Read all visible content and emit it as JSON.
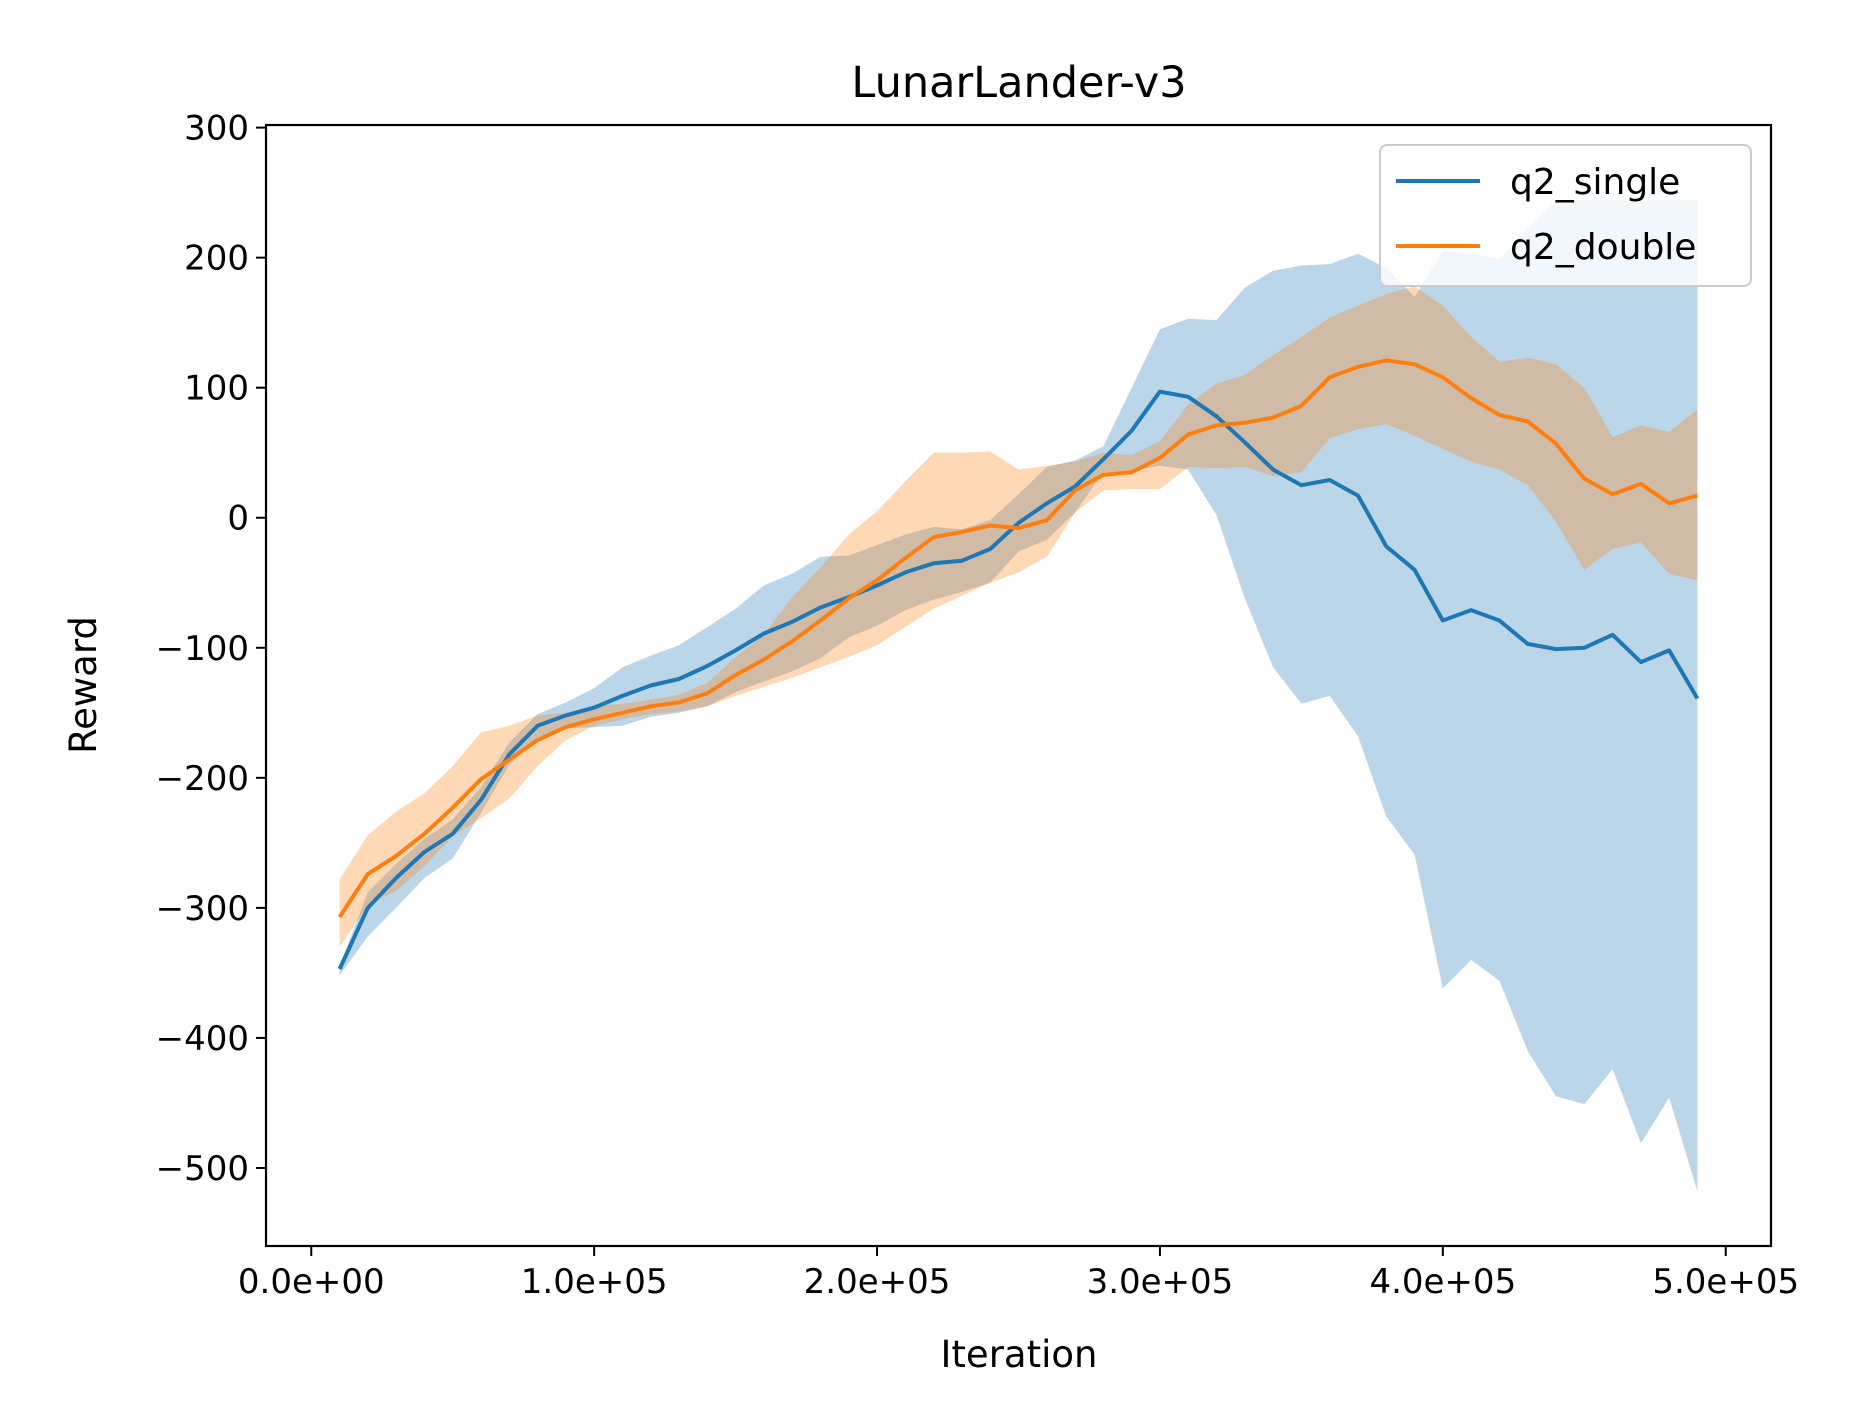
{
  "chart_data": {
    "type": "line",
    "title": "LunarLander-v3",
    "xlabel": "Iteration",
    "ylabel": "Reward",
    "xlim": [
      -16000,
      516000
    ],
    "ylim": [
      -560,
      302
    ],
    "x_ticks": [
      0,
      100000,
      200000,
      300000,
      400000,
      500000
    ],
    "x_tick_labels": [
      "0.0e+00",
      "1.0e+05",
      "2.0e+05",
      "3.0e+05",
      "4.0e+05",
      "5.0e+05"
    ],
    "y_ticks": [
      300,
      200,
      100,
      0,
      -100,
      -200,
      -300,
      -400,
      -500
    ],
    "y_tick_labels": [
      "300",
      "200",
      "100",
      "0",
      "−100",
      "−200",
      "−300",
      "−400",
      "−500"
    ],
    "grid": false,
    "legend_position": "top-right",
    "x": [
      10000,
      20000,
      30000,
      40000,
      50000,
      60000,
      70000,
      80000,
      90000,
      100000,
      110000,
      120000,
      130000,
      140000,
      150000,
      160000,
      170000,
      180000,
      190000,
      200000,
      210000,
      220000,
      230000,
      240000,
      250000,
      260000,
      270000,
      280000,
      290000,
      300000,
      310000,
      320000,
      330000,
      340000,
      350000,
      360000,
      370000,
      380000,
      390000,
      400000,
      410000,
      420000,
      430000,
      440000,
      450000,
      460000,
      470000,
      480000,
      490000
    ],
    "series": [
      {
        "name": "q2_single",
        "color": "#1f77b4",
        "band_color": "#1f77b4",
        "band_opacity": 0.3,
        "values": [
          -347,
          -300,
          -277,
          -257,
          -243,
          -217,
          -182,
          -160,
          -152,
          -146,
          -137,
          -129,
          -124,
          -114,
          -102,
          -89,
          -80,
          -69,
          -61,
          -52,
          -42,
          -35,
          -33,
          -24,
          -4,
          11,
          24,
          45,
          67,
          97,
          93,
          78,
          58,
          37,
          25,
          29,
          17,
          -22,
          -40,
          -79,
          -71,
          -79,
          -97,
          -101,
          -100,
          -90,
          -111,
          -102,
          -139
        ],
        "upper": [
          -345,
          -288,
          -266,
          -247,
          -232,
          -207,
          -173,
          -151,
          -142,
          -131,
          -115,
          -106,
          -98,
          -84,
          -70,
          -52,
          -43,
          -30,
          -29,
          -21,
          -13,
          -7,
          -9,
          -2,
          18,
          39,
          44,
          55,
          100,
          145,
          153,
          152,
          177,
          190,
          194,
          195,
          203,
          192,
          170,
          205,
          203,
          199,
          222,
          244,
          244,
          244,
          244,
          244,
          244
        ],
        "lower": [
          -352,
          -322,
          -300,
          -277,
          -262,
          -227,
          -190,
          -169,
          -162,
          -161,
          -160,
          -153,
          -150,
          -145,
          -134,
          -126,
          -118,
          -108,
          -92,
          -83,
          -71,
          -63,
          -57,
          -50,
          -26,
          -17,
          4,
          35,
          36,
          40,
          37,
          2,
          -62,
          -115,
          -143,
          -137,
          -168,
          -230,
          -259,
          -362,
          -340,
          -356,
          -410,
          -445,
          -451,
          -424,
          -481,
          -446,
          -518
        ]
      },
      {
        "name": "q2_double",
        "color": "#ff7f0e",
        "band_color": "#ff7f0e",
        "band_opacity": 0.3,
        "values": [
          -307,
          -274,
          -260,
          -243,
          -223,
          -201,
          -186,
          -171,
          -161,
          -155,
          -150,
          -145,
          -142,
          -135,
          -121,
          -109,
          -95,
          -79,
          -62,
          -48,
          -31,
          -15,
          -11,
          -6,
          -8,
          -2,
          21,
          33,
          35,
          46,
          64,
          71,
          73,
          77,
          86,
          108,
          116,
          121,
          118,
          108,
          92,
          79,
          74,
          57,
          30,
          18,
          26,
          11,
          17
        ],
        "upper": [
          -278,
          -244,
          -226,
          -212,
          -191,
          -165,
          -160,
          -152,
          -150,
          -145,
          -143,
          -140,
          -136,
          -127,
          -107,
          -90,
          -61,
          -38,
          -13,
          5,
          28,
          50,
          50,
          51,
          37,
          40,
          43,
          50,
          48,
          59,
          87,
          103,
          110,
          125,
          139,
          154,
          163,
          172,
          178,
          163,
          139,
          120,
          123,
          118,
          100,
          62,
          71,
          66,
          83
        ],
        "lower": [
          -330,
          -298,
          -287,
          -268,
          -245,
          -231,
          -216,
          -191,
          -171,
          -160,
          -155,
          -151,
          -149,
          -145,
          -137,
          -130,
          -123,
          -115,
          -107,
          -98,
          -84,
          -70,
          -60,
          -50,
          -42,
          -30,
          4,
          21,
          22,
          22,
          39,
          38,
          39,
          32,
          35,
          61,
          68,
          72,
          63,
          53,
          43,
          37,
          25,
          -3,
          -40,
          -24,
          -19,
          -43,
          -48
        ]
      }
    ]
  }
}
